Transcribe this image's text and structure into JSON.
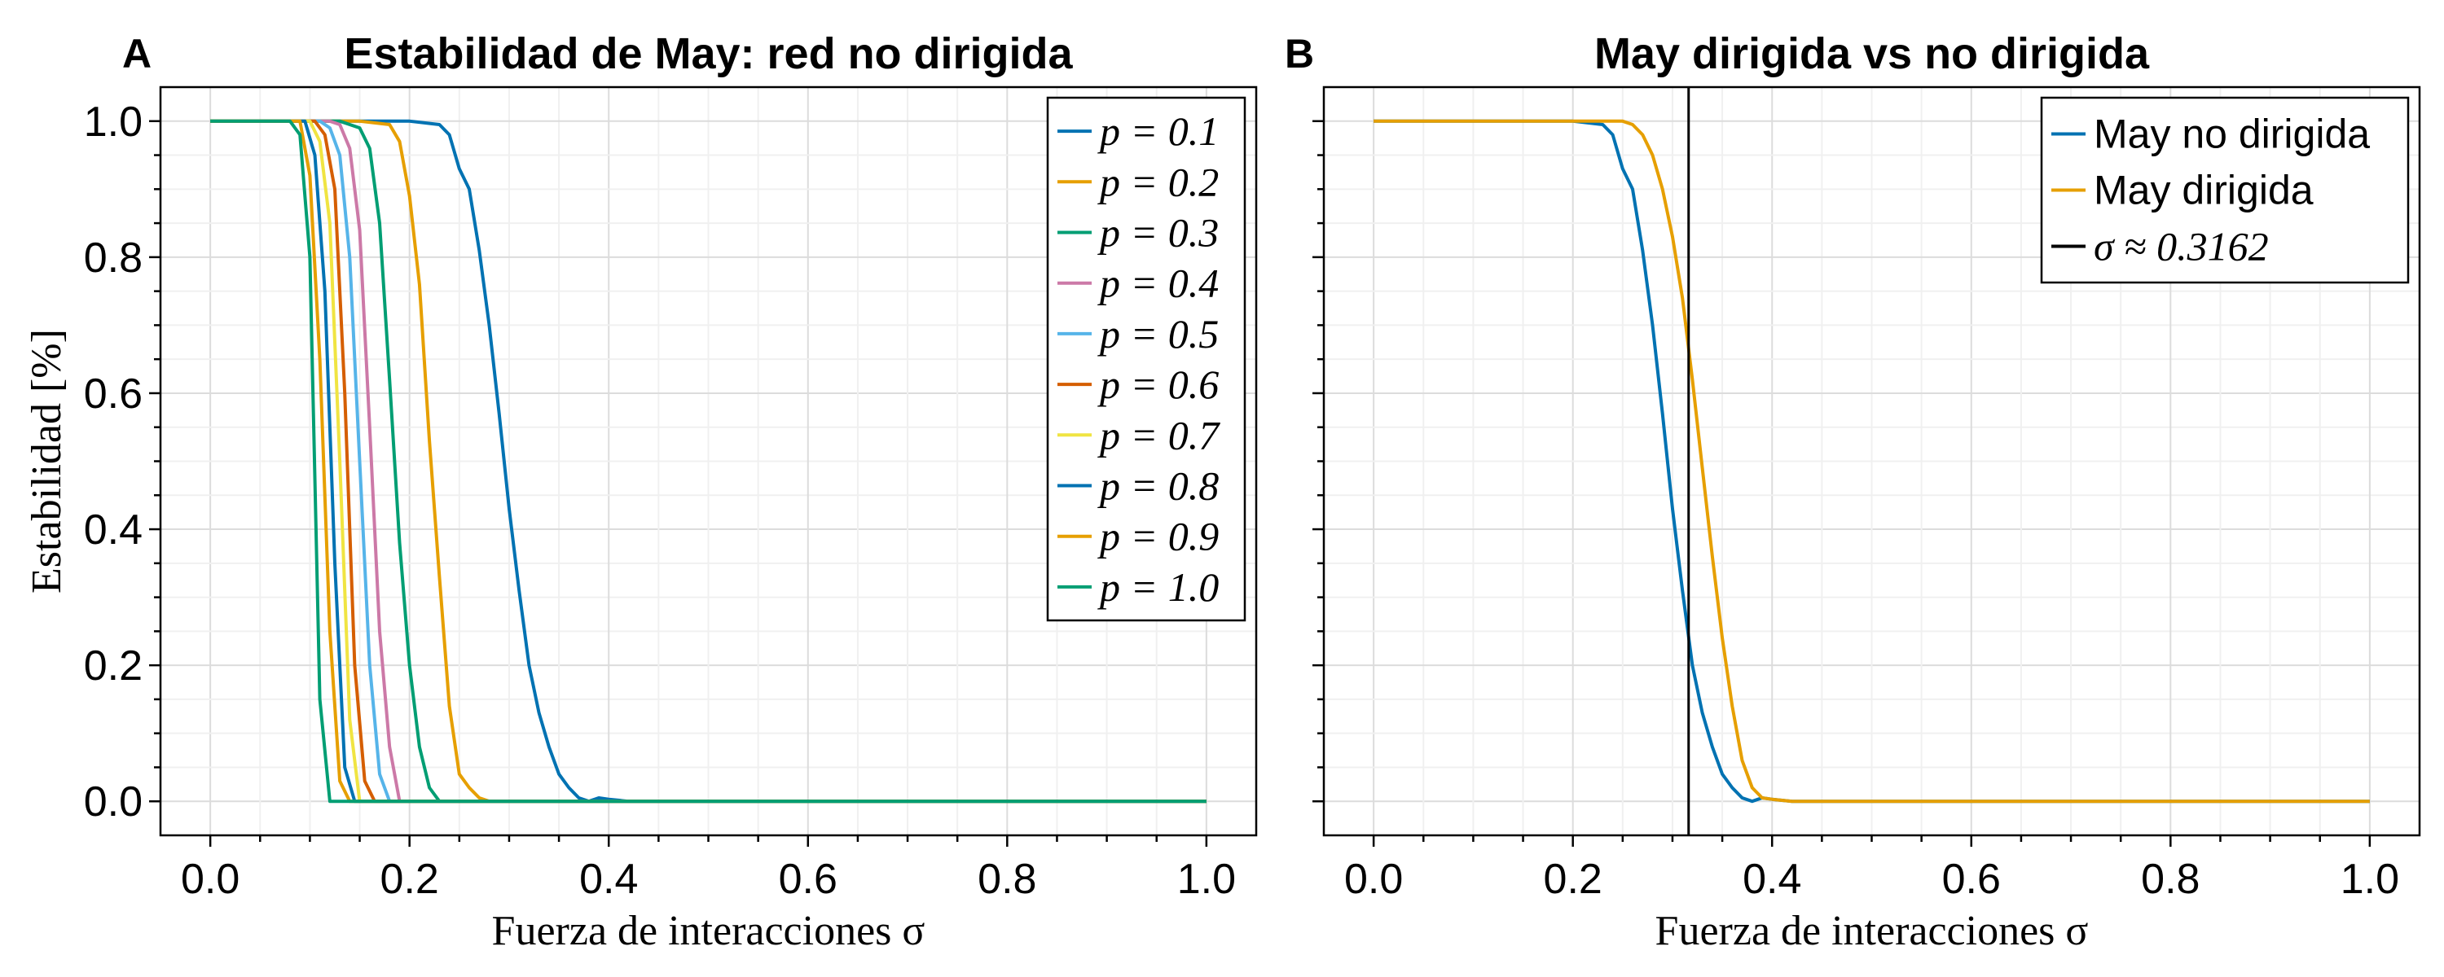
{
  "chart_data": [
    {
      "type": "line",
      "panel_label": "A",
      "title": "Estabilidad de May: red no dirigida",
      "xlabel": "Fuerza de interacciones σ",
      "ylabel": "Estabilidad [%]",
      "xlim": [
        -0.05,
        1.05
      ],
      "ylim": [
        -0.05,
        1.05
      ],
      "xticks": [
        "0.0",
        "0.2",
        "0.4",
        "0.6",
        "0.8",
        "1.0"
      ],
      "yticks": [
        "0.0",
        "0.2",
        "0.4",
        "0.6",
        "0.8",
        "1.0"
      ],
      "grid": true,
      "legend_position": "top-right",
      "series": [
        {
          "name": "p = 0.1",
          "color": "#0072B2",
          "x": [
            0,
            0.1,
            0.2,
            0.23,
            0.24,
            0.25,
            0.26,
            0.27,
            0.28,
            0.29,
            0.3,
            0.31,
            0.32,
            0.33,
            0.34,
            0.35,
            0.36,
            0.37,
            0.38,
            0.39,
            0.4,
            0.42,
            1.0
          ],
          "y": [
            1,
            1,
            1,
            0.995,
            0.98,
            0.93,
            0.9,
            0.81,
            0.7,
            0.57,
            0.43,
            0.31,
            0.2,
            0.13,
            0.08,
            0.04,
            0.02,
            0.005,
            0.0,
            0.005,
            0.003,
            0.0,
            0.0
          ]
        },
        {
          "name": "p = 0.2",
          "color": "#E69F00",
          "x": [
            0,
            0.15,
            0.18,
            0.19,
            0.2,
            0.21,
            0.22,
            0.23,
            0.24,
            0.25,
            0.26,
            0.27,
            0.28,
            1.0
          ],
          "y": [
            1,
            1,
            0.995,
            0.97,
            0.89,
            0.76,
            0.53,
            0.33,
            0.14,
            0.04,
            0.02,
            0.005,
            0.0,
            0.0
          ]
        },
        {
          "name": "p = 0.3",
          "color": "#009E73",
          "x": [
            0,
            0.13,
            0.15,
            0.16,
            0.17,
            0.18,
            0.19,
            0.2,
            0.21,
            0.22,
            0.23,
            1.0
          ],
          "y": [
            1,
            1,
            0.99,
            0.96,
            0.85,
            0.62,
            0.38,
            0.2,
            0.08,
            0.02,
            0.0,
            0.0
          ]
        },
        {
          "name": "p = 0.4",
          "color": "#CC79A7",
          "x": [
            0,
            0.12,
            0.13,
            0.14,
            0.15,
            0.16,
            0.17,
            0.18,
            0.19,
            1.0
          ],
          "y": [
            1,
            1,
            0.995,
            0.96,
            0.84,
            0.55,
            0.25,
            0.08,
            0.0,
            0.0
          ]
        },
        {
          "name": "p = 0.5",
          "color": "#56B4E9",
          "x": [
            0,
            0.11,
            0.12,
            0.13,
            0.14,
            0.15,
            0.16,
            0.17,
            0.18,
            1.0
          ],
          "y": [
            1,
            1,
            0.99,
            0.95,
            0.8,
            0.5,
            0.2,
            0.04,
            0.0,
            0.0
          ]
        },
        {
          "name": "p = 0.6",
          "color": "#D55E00",
          "x": [
            0,
            0.105,
            0.115,
            0.125,
            0.135,
            0.145,
            0.155,
            0.165,
            1.0
          ],
          "y": [
            1,
            1,
            0.98,
            0.9,
            0.6,
            0.2,
            0.03,
            0.0,
            0.0
          ]
        },
        {
          "name": "p = 0.7",
          "color": "#F0E442",
          "x": [
            0,
            0.1,
            0.11,
            0.12,
            0.13,
            0.14,
            0.15,
            1.0
          ],
          "y": [
            1,
            1,
            0.97,
            0.85,
            0.5,
            0.12,
            0.0,
            0.0
          ]
        },
        {
          "name": "p = 0.8",
          "color": "#0072B2",
          "x": [
            0,
            0.095,
            0.105,
            0.115,
            0.125,
            0.135,
            0.145,
            1.0
          ],
          "y": [
            1,
            1,
            0.95,
            0.75,
            0.35,
            0.05,
            0.0,
            0.0
          ]
        },
        {
          "name": "p = 0.9",
          "color": "#E69F00",
          "x": [
            0,
            0.09,
            0.1,
            0.11,
            0.12,
            0.13,
            0.14,
            1.0
          ],
          "y": [
            1,
            1,
            0.92,
            0.65,
            0.25,
            0.03,
            0.0,
            0.0
          ]
        },
        {
          "name": "p = 1.0",
          "color": "#009E73",
          "x": [
            0,
            0.08,
            0.09,
            0.1,
            0.11,
            0.12,
            0.13,
            1.0
          ],
          "y": [
            1,
            1,
            0.98,
            0.8,
            0.15,
            0.0,
            0.0,
            0.0
          ]
        }
      ]
    },
    {
      "type": "line",
      "panel_label": "B",
      "title": "May dirigida vs no dirigida",
      "xlabel": "Fuerza de interacciones σ",
      "ylabel": "",
      "xlim": [
        -0.05,
        1.05
      ],
      "ylim": [
        -0.05,
        1.05
      ],
      "xticks": [
        "0.0",
        "0.2",
        "0.4",
        "0.6",
        "0.8",
        "1.0"
      ],
      "grid": true,
      "legend_position": "top-right",
      "series": [
        {
          "name": "May no dirigida",
          "color": "#0072B2",
          "x": [
            0,
            0.2,
            0.23,
            0.24,
            0.25,
            0.26,
            0.27,
            0.28,
            0.29,
            0.3,
            0.31,
            0.32,
            0.33,
            0.34,
            0.35,
            0.36,
            0.37,
            0.38,
            0.39,
            0.4,
            0.42,
            1.0
          ],
          "y": [
            1,
            1,
            0.995,
            0.98,
            0.93,
            0.9,
            0.81,
            0.7,
            0.57,
            0.43,
            0.31,
            0.2,
            0.13,
            0.08,
            0.04,
            0.02,
            0.005,
            0.0,
            0.005,
            0.003,
            0.0,
            0.0
          ]
        },
        {
          "name": "May dirigida",
          "color": "#E69F00",
          "x": [
            0,
            0.22,
            0.25,
            0.26,
            0.27,
            0.28,
            0.29,
            0.3,
            0.31,
            0.32,
            0.33,
            0.34,
            0.35,
            0.36,
            0.37,
            0.38,
            0.39,
            0.4,
            0.42,
            1.0
          ],
          "y": [
            1,
            1,
            1,
            0.995,
            0.98,
            0.95,
            0.9,
            0.83,
            0.74,
            0.62,
            0.49,
            0.36,
            0.24,
            0.14,
            0.06,
            0.02,
            0.005,
            0.003,
            0.0,
            0.0
          ]
        }
      ],
      "vline": {
        "name": "σ ≈ 0.3162",
        "x": 0.3162,
        "color": "#000000"
      }
    }
  ]
}
